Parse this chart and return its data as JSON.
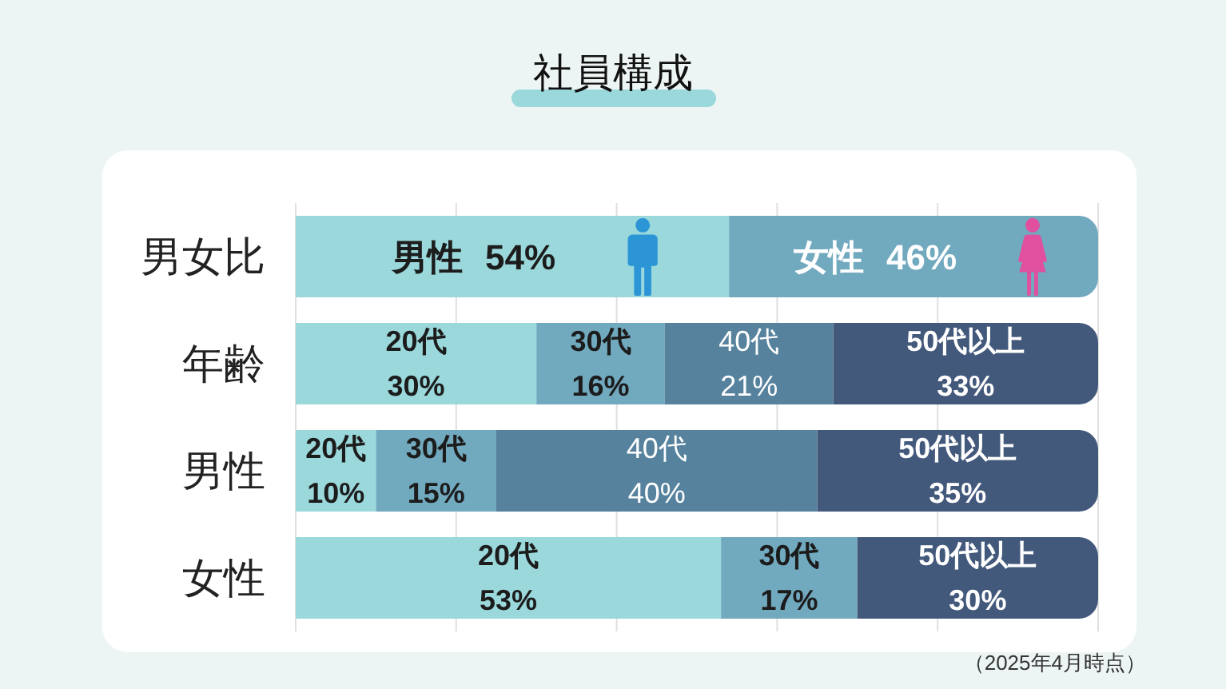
{
  "chart_data": {
    "type": "bar",
    "orientation": "horizontal",
    "stacked": true,
    "title": "社員構成",
    "annotations": [
      "（2025年4月時点）"
    ],
    "categories": [
      "男女比",
      "年齢",
      "男性",
      "女性"
    ],
    "series": [
      {
        "name": "男性",
        "color": "#9ad8db",
        "values": [
          54,
          null,
          null,
          null
        ],
        "value_labels": [
          "54%",
          null,
          null,
          null
        ]
      },
      {
        "name": "女性",
        "color": "#71a9be",
        "values": [
          46,
          null,
          null,
          null
        ],
        "value_labels": [
          "46%",
          null,
          null,
          null
        ]
      },
      {
        "name": "20代",
        "color": "#9ad8db",
        "values": [
          null,
          30,
          10,
          53
        ],
        "value_labels": [
          null,
          "30%",
          "10%",
          "53%"
        ]
      },
      {
        "name": "30代",
        "color": "#71a9be",
        "values": [
          null,
          16,
          15,
          17
        ],
        "value_labels": [
          null,
          "16%",
          "15%",
          "17%"
        ]
      },
      {
        "name": "40代",
        "color": "#56829d",
        "values": [
          null,
          21,
          40,
          null
        ],
        "value_labels": [
          null,
          "21%",
          "40%",
          null
        ]
      },
      {
        "name": "50代以上",
        "color": "#43597c",
        "values": [
          null,
          33,
          35,
          30
        ],
        "value_labels": [
          null,
          "33%",
          "35%",
          "30%"
        ]
      }
    ],
    "xlim": [
      0,
      100
    ],
    "xticks": [
      0,
      20,
      40,
      60,
      80,
      100
    ],
    "grid": "x",
    "tick_labels": "y"
  }
}
